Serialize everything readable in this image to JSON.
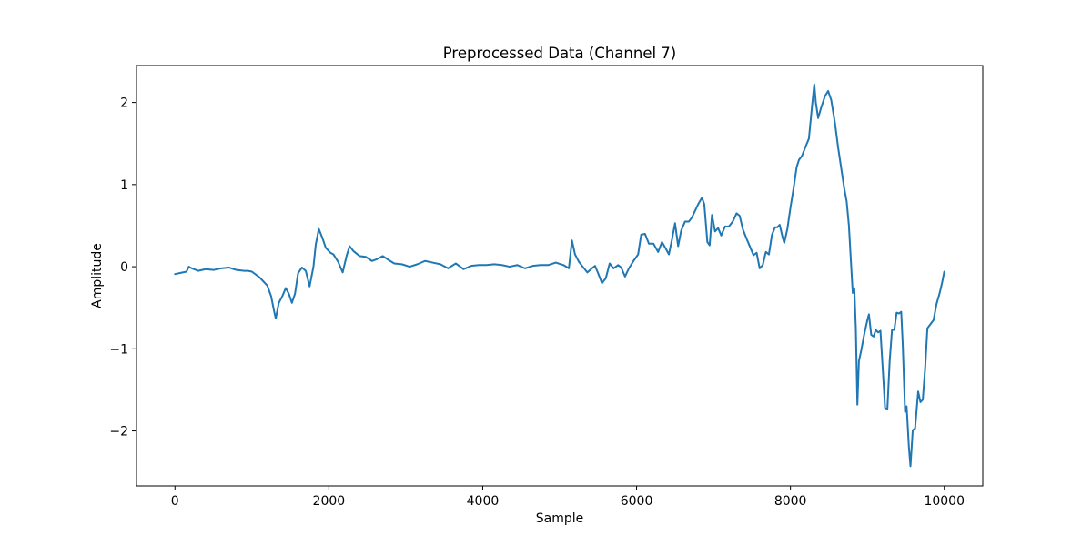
{
  "chart_data": {
    "type": "line",
    "title": "Preprocessed Data (Channel 7)",
    "xlabel": "Sample",
    "ylabel": "Amplitude",
    "xlim": [
      -500,
      10500
    ],
    "ylim": [
      -2.67,
      2.45
    ],
    "grid": false,
    "xticks": [
      0,
      2000,
      4000,
      6000,
      8000,
      10000
    ],
    "yticks": [
      -2,
      -1,
      0,
      1,
      2
    ],
    "xtick_labels": [
      "0",
      "2000",
      "4000",
      "6000",
      "8000",
      "10000"
    ],
    "ytick_labels": [
      "−2",
      "−1",
      "0",
      "1",
      "2"
    ],
    "series": [
      {
        "color": "#1f77b4",
        "points": [
          [
            0,
            -0.09
          ],
          [
            100,
            -0.07
          ],
          [
            150,
            -0.06
          ],
          [
            180,
            0.0
          ],
          [
            220,
            -0.02
          ],
          [
            300,
            -0.05
          ],
          [
            400,
            -0.03
          ],
          [
            500,
            -0.04
          ],
          [
            600,
            -0.02
          ],
          [
            700,
            -0.01
          ],
          [
            800,
            -0.04
          ],
          [
            900,
            -0.05
          ],
          [
            950,
            -0.05
          ],
          [
            1000,
            -0.06
          ],
          [
            1100,
            -0.13
          ],
          [
            1150,
            -0.18
          ],
          [
            1200,
            -0.23
          ],
          [
            1250,
            -0.36
          ],
          [
            1290,
            -0.55
          ],
          [
            1310,
            -0.63
          ],
          [
            1350,
            -0.44
          ],
          [
            1400,
            -0.35
          ],
          [
            1440,
            -0.26
          ],
          [
            1480,
            -0.33
          ],
          [
            1520,
            -0.44
          ],
          [
            1560,
            -0.33
          ],
          [
            1600,
            -0.08
          ],
          [
            1650,
            -0.01
          ],
          [
            1700,
            -0.05
          ],
          [
            1750,
            -0.24
          ],
          [
            1800,
            0.0
          ],
          [
            1830,
            0.27
          ],
          [
            1870,
            0.46
          ],
          [
            1920,
            0.34
          ],
          [
            1960,
            0.23
          ],
          [
            2020,
            0.17
          ],
          [
            2060,
            0.15
          ],
          [
            2120,
            0.06
          ],
          [
            2180,
            -0.07
          ],
          [
            2230,
            0.13
          ],
          [
            2270,
            0.25
          ],
          [
            2320,
            0.19
          ],
          [
            2400,
            0.13
          ],
          [
            2480,
            0.12
          ],
          [
            2560,
            0.07
          ],
          [
            2620,
            0.09
          ],
          [
            2700,
            0.13
          ],
          [
            2780,
            0.08
          ],
          [
            2850,
            0.04
          ],
          [
            2950,
            0.03
          ],
          [
            3050,
            0.0
          ],
          [
            3150,
            0.03
          ],
          [
            3250,
            0.07
          ],
          [
            3350,
            0.05
          ],
          [
            3450,
            0.03
          ],
          [
            3550,
            -0.02
          ],
          [
            3650,
            0.04
          ],
          [
            3750,
            -0.03
          ],
          [
            3850,
            0.01
          ],
          [
            3950,
            0.02
          ],
          [
            4050,
            0.02
          ],
          [
            4150,
            0.03
          ],
          [
            4250,
            0.02
          ],
          [
            4350,
            0.0
          ],
          [
            4450,
            0.02
          ],
          [
            4550,
            -0.02
          ],
          [
            4650,
            0.01
          ],
          [
            4750,
            0.02
          ],
          [
            4850,
            0.02
          ],
          [
            4950,
            0.05
          ],
          [
            5050,
            0.02
          ],
          [
            5120,
            -0.02
          ],
          [
            5160,
            0.32
          ],
          [
            5200,
            0.15
          ],
          [
            5250,
            0.06
          ],
          [
            5300,
            0.0
          ],
          [
            5360,
            -0.07
          ],
          [
            5420,
            -0.02
          ],
          [
            5460,
            0.01
          ],
          [
            5500,
            -0.08
          ],
          [
            5550,
            -0.2
          ],
          [
            5600,
            -0.14
          ],
          [
            5650,
            0.04
          ],
          [
            5700,
            -0.02
          ],
          [
            5760,
            0.02
          ],
          [
            5800,
            -0.01
          ],
          [
            5850,
            -0.12
          ],
          [
            5900,
            -0.02
          ],
          [
            5960,
            0.07
          ],
          [
            6020,
            0.15
          ],
          [
            6060,
            0.39
          ],
          [
            6110,
            0.4
          ],
          [
            6160,
            0.28
          ],
          [
            6220,
            0.28
          ],
          [
            6280,
            0.18
          ],
          [
            6330,
            0.3
          ],
          [
            6380,
            0.22
          ],
          [
            6420,
            0.15
          ],
          [
            6460,
            0.33
          ],
          [
            6500,
            0.53
          ],
          [
            6540,
            0.25
          ],
          [
            6580,
            0.44
          ],
          [
            6630,
            0.55
          ],
          [
            6680,
            0.55
          ],
          [
            6720,
            0.6
          ],
          [
            6760,
            0.68
          ],
          [
            6800,
            0.76
          ],
          [
            6850,
            0.84
          ],
          [
            6880,
            0.76
          ],
          [
            6920,
            0.3
          ],
          [
            6950,
            0.26
          ],
          [
            6980,
            0.63
          ],
          [
            7020,
            0.43
          ],
          [
            7060,
            0.47
          ],
          [
            7100,
            0.38
          ],
          [
            7150,
            0.49
          ],
          [
            7200,
            0.49
          ],
          [
            7250,
            0.55
          ],
          [
            7300,
            0.65
          ],
          [
            7340,
            0.62
          ],
          [
            7380,
            0.46
          ],
          [
            7430,
            0.34
          ],
          [
            7480,
            0.23
          ],
          [
            7520,
            0.14
          ],
          [
            7560,
            0.17
          ],
          [
            7600,
            -0.02
          ],
          [
            7640,
            0.02
          ],
          [
            7680,
            0.18
          ],
          [
            7720,
            0.15
          ],
          [
            7760,
            0.39
          ],
          [
            7800,
            0.48
          ],
          [
            7830,
            0.48
          ],
          [
            7860,
            0.51
          ],
          [
            7900,
            0.35
          ],
          [
            7920,
            0.29
          ],
          [
            7960,
            0.46
          ],
          [
            8000,
            0.72
          ],
          [
            8040,
            0.95
          ],
          [
            8080,
            1.21
          ],
          [
            8110,
            1.3
          ],
          [
            8150,
            1.35
          ],
          [
            8200,
            1.47
          ],
          [
            8240,
            1.56
          ],
          [
            8280,
            1.95
          ],
          [
            8310,
            2.22
          ],
          [
            8330,
            2.0
          ],
          [
            8360,
            1.81
          ],
          [
            8400,
            1.94
          ],
          [
            8450,
            2.08
          ],
          [
            8490,
            2.14
          ],
          [
            8530,
            2.03
          ],
          [
            8580,
            1.74
          ],
          [
            8620,
            1.45
          ],
          [
            8660,
            1.2
          ],
          [
            8700,
            0.95
          ],
          [
            8730,
            0.8
          ],
          [
            8760,
            0.5
          ],
          [
            8790,
            0.0
          ],
          [
            8810,
            -0.32
          ],
          [
            8830,
            -0.26
          ],
          [
            8850,
            -0.75
          ],
          [
            8870,
            -1.68
          ],
          [
            8890,
            -1.15
          ],
          [
            8920,
            -1.02
          ],
          [
            8960,
            -0.82
          ],
          [
            9000,
            -0.65
          ],
          [
            9020,
            -0.58
          ],
          [
            9050,
            -0.83
          ],
          [
            9080,
            -0.85
          ],
          [
            9110,
            -0.77
          ],
          [
            9140,
            -0.8
          ],
          [
            9170,
            -0.78
          ],
          [
            9200,
            -1.25
          ],
          [
            9230,
            -1.72
          ],
          [
            9260,
            -1.73
          ],
          [
            9290,
            -1.15
          ],
          [
            9320,
            -0.77
          ],
          [
            9350,
            -0.77
          ],
          [
            9380,
            -0.56
          ],
          [
            9410,
            -0.57
          ],
          [
            9440,
            -0.55
          ],
          [
            9460,
            -0.95
          ],
          [
            9490,
            -1.77
          ],
          [
            9510,
            -1.7
          ],
          [
            9540,
            -2.2
          ],
          [
            9560,
            -2.43
          ],
          [
            9590,
            -1.99
          ],
          [
            9620,
            -1.97
          ],
          [
            9660,
            -1.52
          ],
          [
            9690,
            -1.65
          ],
          [
            9720,
            -1.62
          ],
          [
            9750,
            -1.25
          ],
          [
            9780,
            -0.75
          ],
          [
            9820,
            -0.7
          ],
          [
            9860,
            -0.65
          ],
          [
            9900,
            -0.45
          ],
          [
            9940,
            -0.32
          ],
          [
            9970,
            -0.2
          ],
          [
            10000,
            -0.06
          ]
        ]
      }
    ]
  }
}
